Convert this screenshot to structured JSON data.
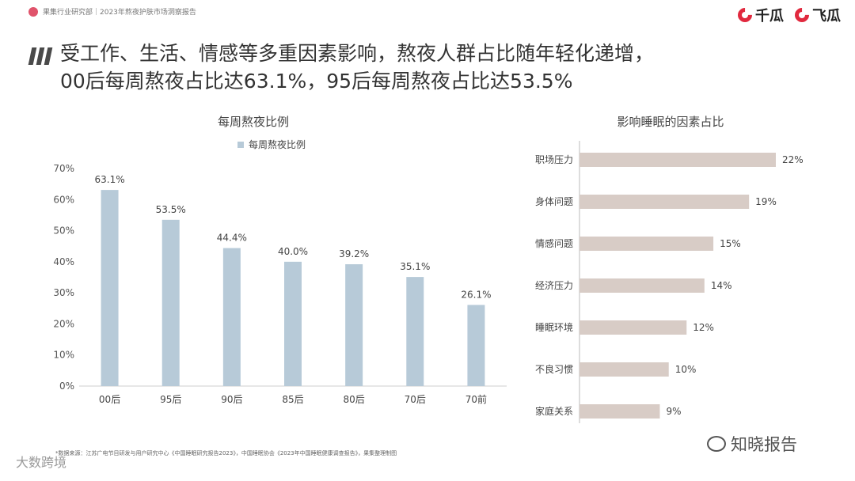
{
  "header": {
    "source_label": "果集行业研究部｜2023年熬夜护肤市场洞察报告",
    "logos": [
      "千瓜",
      "飞瓜"
    ]
  },
  "headline": {
    "line1": "受工作、生活、情感等多重因素影响，熬夜人群占比随年轻化递增，",
    "line2": "00后每周熬夜占比达63.1%，95后每周熬夜占比达53.5%"
  },
  "chart_data": [
    {
      "type": "bar",
      "title": "每周熬夜比例",
      "legend": "每周熬夜比例",
      "categories": [
        "00后",
        "95后",
        "90后",
        "85后",
        "80后",
        "70后",
        "70前"
      ],
      "values": [
        63.1,
        53.5,
        44.4,
        40.0,
        39.2,
        35.1,
        26.1
      ],
      "value_labels": [
        "63.1%",
        "53.5%",
        "44.4%",
        "40.0%",
        "39.2%",
        "35.1%",
        "26.1%"
      ],
      "yticks": [
        "0%",
        "10%",
        "20%",
        "30%",
        "40%",
        "50%",
        "60%",
        "70%"
      ],
      "ylim": [
        0,
        70
      ],
      "color": "#b7cad8"
    },
    {
      "type": "bar",
      "orientation": "horizontal",
      "title": "影响睡眠的因素占比",
      "categories": [
        "职场压力",
        "身体问题",
        "情感问题",
        "经济压力",
        "睡眠环境",
        "不良习惯",
        "家庭关系"
      ],
      "values": [
        22,
        19,
        15,
        14,
        12,
        10,
        9
      ],
      "value_labels": [
        "22%",
        "19%",
        "15%",
        "14%",
        "12%",
        "10%",
        "9%"
      ],
      "xlim": [
        0,
        22
      ],
      "color": "#d8ccc6"
    }
  ],
  "footnote": "*数据来源：江苏广电节目研发与用户研究中心《中国睡眠研究报告2023》，中国睡眠协会《2023年中国睡眠健康调查报告》，果集整理制图",
  "watermarks": {
    "bottom_left": "大数跨境",
    "bottom_right": "知晓报告"
  }
}
